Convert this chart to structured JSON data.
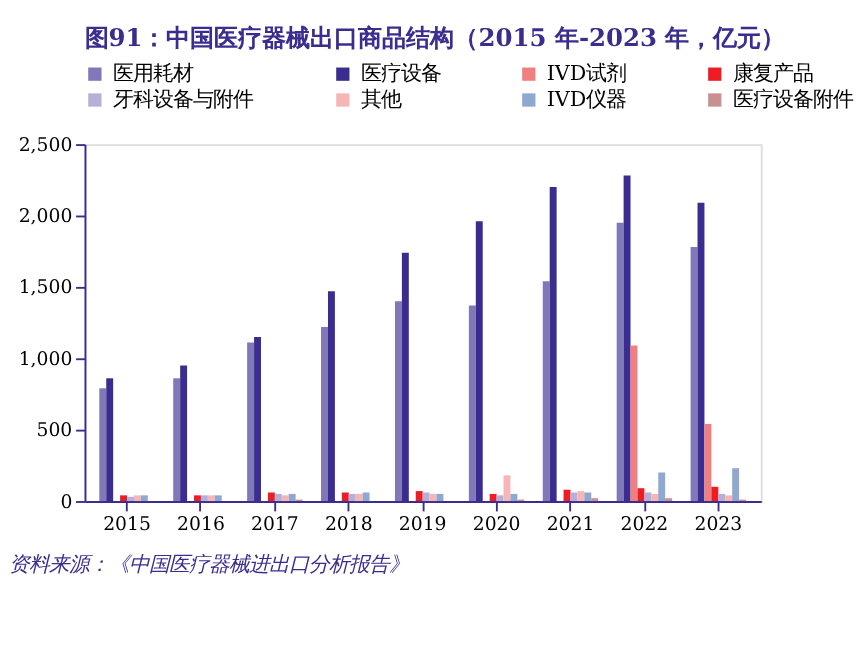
{
  "chart_data": {
    "type": "bar",
    "title": "图91：中国医疗器械出口商品结构（2015 年-2023 年，亿元）",
    "categories": [
      "2015",
      "2016",
      "2017",
      "2018",
      "2019",
      "2020",
      "2021",
      "2022",
      "2023"
    ],
    "series": [
      {
        "name": "医用耗材",
        "color": "#8078b8",
        "values": [
          790,
          860,
          1110,
          1220,
          1400,
          1370,
          1540,
          1950,
          1780
        ]
      },
      {
        "name": "医疗设备",
        "color": "#3b2d8f",
        "values": [
          860,
          950,
          1150,
          1470,
          1740,
          1960,
          2200,
          2280,
          2090
        ]
      },
      {
        "name": "IVD试剂",
        "color": "#f08080",
        "values": [
          null,
          null,
          null,
          null,
          null,
          null,
          null,
          1090,
          540
        ]
      },
      {
        "name": "康复产品",
        "color": "#ee1c25",
        "values": [
          40,
          40,
          60,
          60,
          70,
          50,
          80,
          90,
          100
        ]
      },
      {
        "name": "牙科设备与附件",
        "color": "#b4b0d8",
        "values": [
          30,
          40,
          50,
          50,
          60,
          40,
          60,
          60,
          50
        ]
      },
      {
        "name": "其他",
        "color": "#f7b6b6",
        "values": [
          40,
          40,
          40,
          50,
          50,
          180,
          70,
          50,
          40
        ]
      },
      {
        "name": "IVD仪器",
        "color": "#8fa8d0",
        "values": [
          40,
          40,
          50,
          60,
          50,
          50,
          60,
          200,
          230
        ]
      },
      {
        "name": "医疗设备附件",
        "color": "#c89090",
        "values": [
          null,
          null,
          10,
          null,
          null,
          10,
          20,
          20,
          10
        ]
      }
    ],
    "ylim": [
      0,
      2500
    ],
    "yticks": [
      0,
      500,
      {
        "value": 1000,
        "label": "1,000"
      },
      {
        "value": 1500,
        "label": "1,500"
      },
      {
        "value": 2000,
        "label": "2,000"
      },
      {
        "value": 2500,
        "label": "2,500"
      }
    ],
    "grid": false,
    "legend": "top",
    "annotations": [
      "资料来源：《中国医疗器械进出口分析报告》"
    ]
  }
}
